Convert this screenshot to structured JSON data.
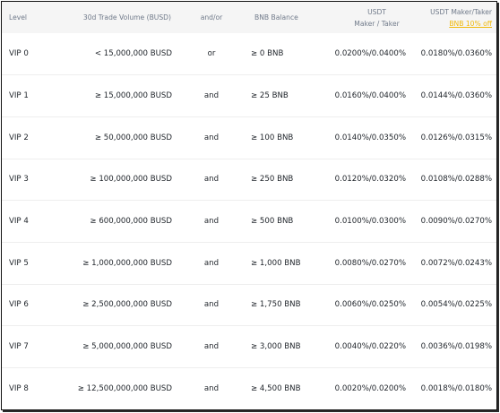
{
  "headers": {
    "level": "Level",
    "volume": "30d Trade Volume (BUSD)",
    "andor": "and/or",
    "bnb_balance": "BNB Balance",
    "usdt_line1": "USDT",
    "usdt_line2": "Maker / Taker",
    "usdt_discount_line1": "USDT Maker/Taker",
    "usdt_discount_line2": "BNB 10% off"
  },
  "accent_color": "#f0b90b",
  "rows": [
    {
      "level": "VIP 0",
      "volume": "< 15,000,000 BUSD",
      "andor": "or",
      "bnb": "≥ 0 BNB",
      "usdt": "0.0200%/0.0400%",
      "discount": "0.0180%/0.0360%"
    },
    {
      "level": "VIP 1",
      "volume": "≥ 15,000,000 BUSD",
      "andor": "and",
      "bnb": "≥ 25 BNB",
      "usdt": "0.0160%/0.0400%",
      "discount": "0.0144%/0.0360%"
    },
    {
      "level": "VIP 2",
      "volume": "≥ 50,000,000 BUSD",
      "andor": "and",
      "bnb": "≥ 100 BNB",
      "usdt": "0.0140%/0.0350%",
      "discount": "0.0126%/0.0315%"
    },
    {
      "level": "VIP 3",
      "volume": "≥ 100,000,000 BUSD",
      "andor": "and",
      "bnb": "≥ 250 BNB",
      "usdt": "0.0120%/0.0320%",
      "discount": "0.0108%/0.0288%"
    },
    {
      "level": "VIP 4",
      "volume": "≥ 600,000,000 BUSD",
      "andor": "and",
      "bnb": "≥ 500 BNB",
      "usdt": "0.0100%/0.0300%",
      "discount": "0.0090%/0.0270%"
    },
    {
      "level": "VIP 5",
      "volume": "≥ 1,000,000,000 BUSD",
      "andor": "and",
      "bnb": "≥ 1,000 BNB",
      "usdt": "0.0080%/0.0270%",
      "discount": "0.0072%/0.0243%"
    },
    {
      "level": "VIP 6",
      "volume": "≥ 2,500,000,000 BUSD",
      "andor": "and",
      "bnb": "≥ 1,750 BNB",
      "usdt": "0.0060%/0.0250%",
      "discount": "0.0054%/0.0225%"
    },
    {
      "level": "VIP 7",
      "volume": "≥ 5,000,000,000 BUSD",
      "andor": "and",
      "bnb": "≥ 3,000 BNB",
      "usdt": "0.0040%/0.0220%",
      "discount": "0.0036%/0.0198%"
    },
    {
      "level": "VIP 8",
      "volume": "≥ 12,500,000,000 BUSD",
      "andor": "and",
      "bnb": "≥ 4,500 BNB",
      "usdt": "0.0020%/0.0200%",
      "discount": "0.0018%/0.0180%"
    }
  ]
}
